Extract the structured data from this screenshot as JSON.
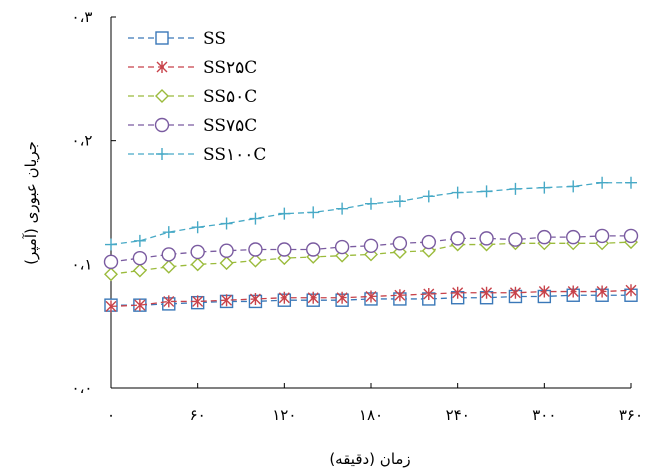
{
  "chart_data": {
    "type": "line",
    "title": "",
    "xlabel": "زمان (دقیقه)",
    "ylabel": "جریان عبوری (آمپر)",
    "xlim": [
      0,
      360
    ],
    "ylim": [
      0,
      0.3
    ],
    "x_ticks": [
      0,
      60,
      120,
      180,
      240,
      300,
      360
    ],
    "x_tick_labels": [
      "۰",
      "۶۰",
      "۱۲۰",
      "۱۸۰",
      "۲۴۰",
      "۳۰۰",
      "۳۶۰"
    ],
    "y_ticks": [
      0,
      0.1,
      0.2,
      0.3
    ],
    "y_tick_labels": [
      "۰،۰",
      "۰،۱",
      "۰،۲",
      "۰،۳"
    ],
    "grid": false,
    "legend_position": "top-left",
    "x": [
      0,
      20,
      40,
      60,
      80,
      100,
      120,
      140,
      160,
      180,
      200,
      220,
      240,
      260,
      280,
      300,
      320,
      340,
      360
    ],
    "series": [
      {
        "name": "SS",
        "color": "#3a78b8",
        "marker": "square",
        "values": [
          0.067,
          0.067,
          0.068,
          0.069,
          0.07,
          0.07,
          0.071,
          0.071,
          0.071,
          0.072,
          0.072,
          0.072,
          0.073,
          0.073,
          0.074,
          0.074,
          0.075,
          0.075,
          0.075
        ]
      },
      {
        "name": "SS۲۵C",
        "color": "#c8424a",
        "marker": "asterisk",
        "values": [
          0.066,
          0.067,
          0.07,
          0.07,
          0.071,
          0.072,
          0.073,
          0.073,
          0.073,
          0.074,
          0.075,
          0.076,
          0.077,
          0.077,
          0.077,
          0.078,
          0.078,
          0.078,
          0.079
        ]
      },
      {
        "name": "SS۵۰C",
        "color": "#9bbb3c",
        "marker": "diamond",
        "values": [
          0.092,
          0.095,
          0.098,
          0.1,
          0.101,
          0.103,
          0.105,
          0.106,
          0.107,
          0.108,
          0.11,
          0.111,
          0.116,
          0.116,
          0.117,
          0.117,
          0.117,
          0.117,
          0.118
        ]
      },
      {
        "name": "SS۷۵C",
        "color": "#7a5ba0",
        "marker": "circle",
        "values": [
          0.102,
          0.105,
          0.108,
          0.11,
          0.111,
          0.112,
          0.112,
          0.112,
          0.114,
          0.115,
          0.117,
          0.118,
          0.121,
          0.121,
          0.12,
          0.122,
          0.122,
          0.123,
          0.123
        ]
      },
      {
        "name": "SS۱۰۰C",
        "color": "#47a9c6",
        "marker": "plus",
        "values": [
          0.116,
          0.119,
          0.126,
          0.13,
          0.133,
          0.137,
          0.141,
          0.142,
          0.145,
          0.149,
          0.151,
          0.155,
          0.158,
          0.159,
          0.161,
          0.162,
          0.163,
          0.166,
          0.166
        ]
      }
    ]
  }
}
